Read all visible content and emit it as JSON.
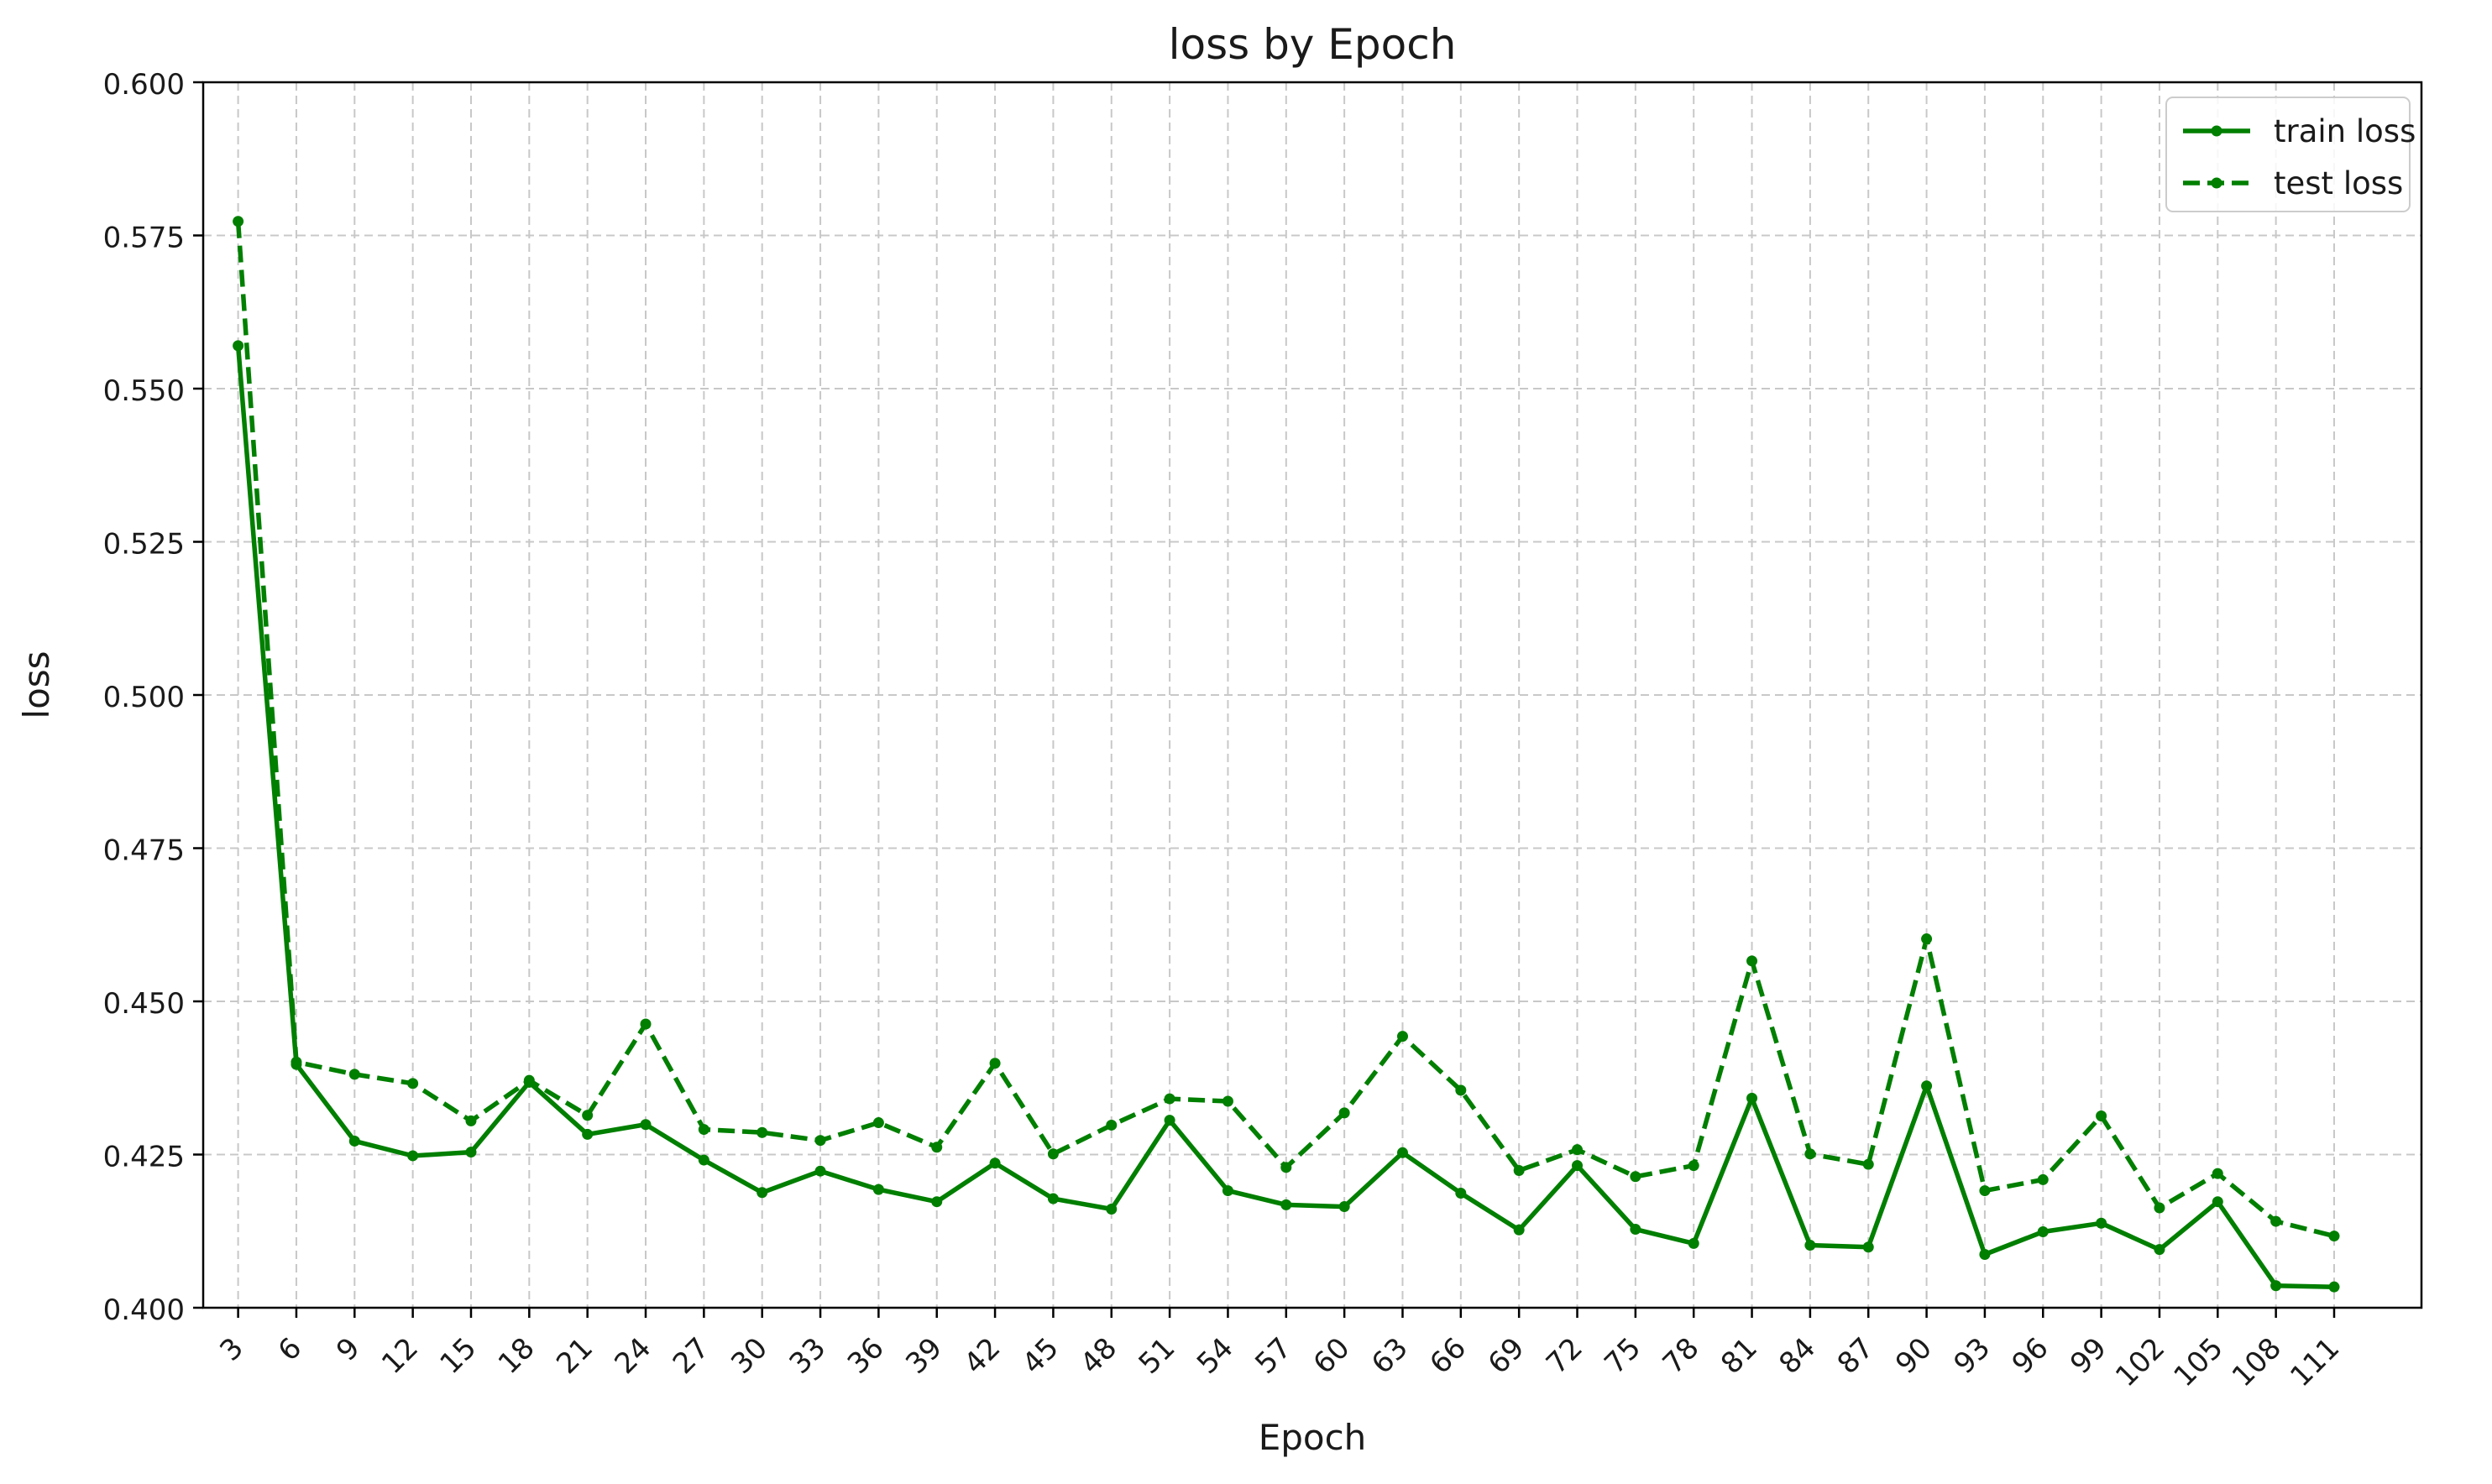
{
  "chart_data": {
    "type": "line",
    "title": "loss by Epoch",
    "xlabel": "Epoch",
    "ylabel": "loss",
    "ylim": [
      0.4,
      0.6
    ],
    "yticks": [
      "0.400",
      "0.425",
      "0.450",
      "0.475",
      "0.500",
      "0.525",
      "0.550",
      "0.575",
      "0.600"
    ],
    "x": [
      3,
      6,
      9,
      12,
      15,
      18,
      21,
      24,
      27,
      30,
      33,
      36,
      39,
      42,
      45,
      48,
      51,
      54,
      57,
      60,
      63,
      66,
      69,
      72,
      75,
      78,
      81,
      84,
      87,
      90,
      93,
      96,
      99,
      102,
      105,
      108,
      111
    ],
    "grid": true,
    "legend_position": "top-right",
    "color": "#007f00",
    "series": [
      {
        "name": "train loss",
        "style": "solid",
        "values": [
          0.557,
          0.4397,
          0.4272,
          0.4248,
          0.4254,
          0.4368,
          0.4283,
          0.4299,
          0.4241,
          0.4188,
          0.4223,
          0.4193,
          0.4173,
          0.4236,
          0.4178,
          0.4161,
          0.4306,
          0.4191,
          0.4168,
          0.4165,
          0.4253,
          0.4187,
          0.4127,
          0.4232,
          0.4128,
          0.4105,
          0.4342,
          0.4102,
          0.4099,
          0.4362,
          0.4087,
          0.4124,
          0.4138,
          0.4095,
          0.4173,
          0.4036,
          0.4034
        ]
      },
      {
        "name": "test loss",
        "style": "dashed",
        "values": [
          0.5773,
          0.4401,
          0.4381,
          0.4366,
          0.4305,
          0.4371,
          0.4314,
          0.4463,
          0.4291,
          0.4286,
          0.4273,
          0.4302,
          0.4262,
          0.4399,
          0.4251,
          0.4298,
          0.4341,
          0.4337,
          0.4229,
          0.4318,
          0.4443,
          0.4355,
          0.4224,
          0.4258,
          0.4214,
          0.4232,
          0.4566,
          0.4251,
          0.4234,
          0.4602,
          0.4191,
          0.4209,
          0.4313,
          0.4163,
          0.4219,
          0.4141,
          0.4117
        ]
      }
    ]
  }
}
